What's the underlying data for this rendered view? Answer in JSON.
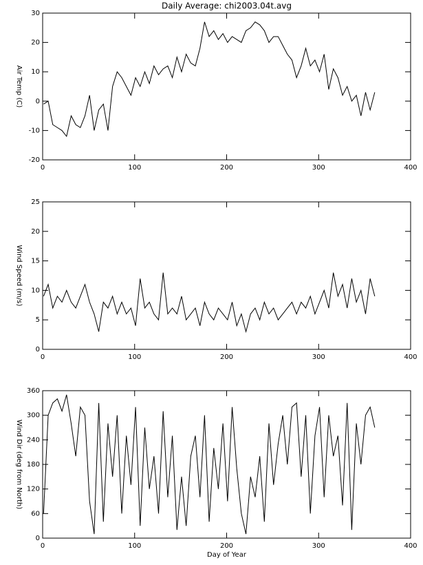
{
  "chart_data": [
    {
      "type": "line",
      "title": "Daily Average: chi2003.04t.avg",
      "ylabel": "Air Temp (C)",
      "x": [
        1,
        6,
        11,
        16,
        21,
        26,
        31,
        36,
        41,
        46,
        51,
        56,
        61,
        66,
        71,
        76,
        81,
        86,
        91,
        96,
        101,
        106,
        111,
        116,
        121,
        126,
        131,
        136,
        141,
        146,
        151,
        156,
        161,
        166,
        171,
        176,
        181,
        186,
        191,
        196,
        201,
        206,
        211,
        216,
        221,
        226,
        231,
        236,
        241,
        246,
        251,
        256,
        261,
        266,
        271,
        276,
        281,
        286,
        291,
        296,
        301,
        306,
        311,
        316,
        321,
        326,
        331,
        336,
        341,
        346,
        351,
        356,
        361
      ],
      "series": [
        {
          "color": "#000000",
          "values": [
            -1,
            0,
            -8,
            -9,
            -10,
            -12,
            -5,
            -8,
            -9,
            -5,
            2,
            -10,
            -3,
            -1,
            -10,
            5,
            10,
            8,
            5,
            2,
            8,
            5,
            10,
            6,
            12,
            9,
            11,
            12,
            8,
            15,
            10,
            16,
            13,
            12,
            18,
            27,
            22,
            24,
            21,
            23,
            20,
            22,
            21,
            20,
            24,
            25,
            27,
            26,
            24,
            20,
            22,
            22,
            19,
            16,
            14,
            8,
            12,
            18,
            12,
            14,
            10,
            16,
            4,
            11,
            8,
            2,
            5,
            0,
            2,
            -5,
            3,
            -3,
            3
          ]
        }
      ],
      "xlim": [
        0,
        400
      ],
      "xticks": [
        0,
        100,
        200,
        300,
        400
      ],
      "ylim": [
        -20,
        30
      ],
      "yticks": [
        -20,
        -10,
        0,
        10,
        20,
        30
      ]
    },
    {
      "type": "line",
      "ylabel": "Wind Speed (m/s)",
      "x": [
        1,
        6,
        11,
        16,
        21,
        26,
        31,
        36,
        41,
        46,
        51,
        56,
        61,
        66,
        71,
        76,
        81,
        86,
        91,
        96,
        101,
        106,
        111,
        116,
        121,
        126,
        131,
        136,
        141,
        146,
        151,
        156,
        161,
        166,
        171,
        176,
        181,
        186,
        191,
        196,
        201,
        206,
        211,
        216,
        221,
        226,
        231,
        236,
        241,
        246,
        251,
        256,
        261,
        266,
        271,
        276,
        281,
        286,
        291,
        296,
        301,
        306,
        311,
        316,
        321,
        326,
        331,
        336,
        341,
        346,
        351,
        356,
        361
      ],
      "series": [
        {
          "color": "#000000",
          "values": [
            9,
            11,
            7,
            9,
            8,
            10,
            8,
            7,
            9,
            11,
            8,
            6,
            3,
            8,
            7,
            9,
            6,
            8,
            6,
            7,
            4,
            12,
            7,
            8,
            6,
            5,
            13,
            6,
            7,
            6,
            9,
            5,
            6,
            7,
            4,
            8,
            6,
            5,
            7,
            6,
            5,
            8,
            4,
            6,
            3,
            6,
            7,
            5,
            8,
            6,
            7,
            5,
            6,
            7,
            8,
            6,
            8,
            7,
            9,
            6,
            8,
            10,
            7,
            13,
            9,
            11,
            7,
            12,
            8,
            10,
            6,
            12,
            9
          ]
        }
      ],
      "xlim": [
        0,
        400
      ],
      "xticks": [
        0,
        100,
        200,
        300,
        400
      ],
      "ylim": [
        0,
        25
      ],
      "yticks": [
        0,
        5,
        10,
        15,
        20,
        25
      ]
    },
    {
      "type": "line",
      "ylabel": "Wind Dir (deg from North)",
      "xlabel": "Day of Year",
      "x": [
        1,
        6,
        11,
        16,
        21,
        26,
        31,
        36,
        41,
        46,
        51,
        56,
        61,
        66,
        71,
        76,
        81,
        86,
        91,
        96,
        101,
        106,
        111,
        116,
        121,
        126,
        131,
        136,
        141,
        146,
        151,
        156,
        161,
        166,
        171,
        176,
        181,
        186,
        191,
        196,
        201,
        206,
        211,
        216,
        221,
        226,
        231,
        236,
        241,
        246,
        251,
        256,
        261,
        266,
        271,
        276,
        281,
        286,
        291,
        296,
        301,
        306,
        311,
        316,
        321,
        326,
        331,
        336,
        341,
        346,
        351,
        356,
        361
      ],
      "series": [
        {
          "color": "#000000",
          "values": [
            60,
            300,
            330,
            340,
            310,
            350,
            280,
            200,
            320,
            300,
            90,
            10,
            330,
            40,
            280,
            150,
            300,
            60,
            250,
            130,
            320,
            30,
            270,
            120,
            200,
            60,
            310,
            100,
            250,
            20,
            150,
            30,
            200,
            250,
            100,
            300,
            40,
            220,
            120,
            280,
            90,
            320,
            170,
            60,
            10,
            150,
            100,
            200,
            40,
            280,
            130,
            230,
            300,
            180,
            320,
            330,
            150,
            300,
            60,
            250,
            320,
            100,
            300,
            200,
            250,
            80,
            330,
            20,
            280,
            180,
            300,
            320,
            270
          ]
        }
      ],
      "xlim": [
        0,
        400
      ],
      "xticks": [
        0,
        100,
        200,
        300,
        400
      ],
      "ylim": [
        0,
        360
      ],
      "yticks": [
        0,
        60,
        120,
        180,
        240,
        300,
        360
      ]
    }
  ]
}
